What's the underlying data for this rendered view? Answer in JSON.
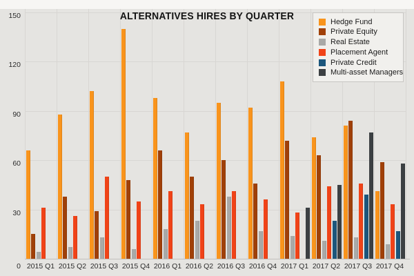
{
  "title": "ALTERNATIVES HIRES BY QUARTER",
  "y_axis": {
    "tick_labels": [
      "0",
      "30",
      "60",
      "90",
      "120",
      "150"
    ]
  },
  "chart_data": {
    "type": "bar",
    "title": "ALTERNATIVES HIRES BY QUARTER",
    "categories": [
      "2015 Q1",
      "2015 Q2",
      "2015 Q3",
      "2015 Q4",
      "2016 Q1",
      "2016 Q2",
      "2016 Q3",
      "2016 Q4",
      "2017 Q1",
      "2017 Q2",
      "2017 Q3",
      "2017 Q4"
    ],
    "series": [
      {
        "name": "Hedge Fund",
        "color": "#F9941C",
        "values": [
          66,
          88,
          102,
          140,
          98,
          77,
          95,
          92,
          108,
          74,
          81,
          41
        ]
      },
      {
        "name": "Private Equity",
        "color": "#A04008",
        "values": [
          15,
          38,
          29,
          48,
          66,
          50,
          60,
          46,
          72,
          63,
          84,
          59
        ]
      },
      {
        "name": "Real Estate",
        "color": "#A9A9A7",
        "values": [
          4,
          7,
          13,
          6,
          18,
          23,
          38,
          17,
          14,
          11,
          13,
          9
        ]
      },
      {
        "name": "Placement Agent",
        "color": "#F04318",
        "values": [
          31,
          26,
          50,
          35,
          41,
          33,
          41,
          36,
          28,
          44,
          46,
          33
        ]
      },
      {
        "name": "Private Credit",
        "color": "#1C567C",
        "values": [
          0,
          0,
          0,
          0,
          0,
          0,
          0,
          0,
          0,
          23,
          39,
          17
        ]
      },
      {
        "name": "Multi-asset Managers",
        "color": "#3C4043",
        "values": [
          0,
          0,
          0,
          0,
          0,
          0,
          0,
          0,
          31,
          45,
          77,
          58
        ]
      }
    ],
    "y_ticks": [
      0,
      30,
      60,
      90,
      120,
      150
    ],
    "ylim": [
      0,
      150
    ],
    "xlabel": "",
    "ylabel": "",
    "grid": true,
    "legend_position": "top-right",
    "plot_background": "#E5E4E1",
    "gridline_color": "#D8D6D3"
  }
}
